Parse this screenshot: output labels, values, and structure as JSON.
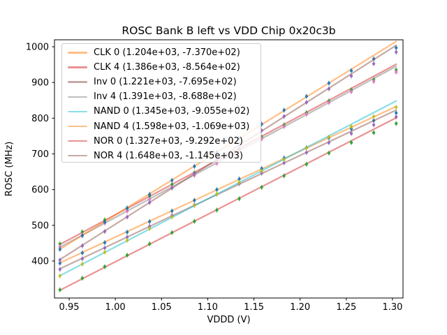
{
  "chart_data": {
    "type": "line",
    "title": "ROSC Bank B left vs VDD Chip 0x20c3b",
    "xlabel": "VDDD (V)",
    "ylabel": "ROSC (MHz)",
    "grid": false,
    "legend_position": "upper left",
    "xlim": [
      0.9341,
      1.3114
    ],
    "ylim": [
      296.4,
      1019.6
    ],
    "x_ticks": [
      0.95,
      1.0,
      1.05,
      1.1,
      1.15,
      1.2,
      1.25,
      1.3
    ],
    "x_tick_labels": [
      "0.95",
      "1.00",
      "1.05",
      "1.10",
      "1.15",
      "1.20",
      "1.25",
      "1.30"
    ],
    "y_ticks": [
      400,
      500,
      600,
      700,
      800,
      900,
      1000
    ],
    "y_tick_labels": [
      "400",
      "500",
      "600",
      "700",
      "800",
      "900",
      "1000"
    ],
    "x_sweep": {
      "start": 0.94,
      "stop": 1.304,
      "points": 16
    },
    "series": [
      {
        "name": "CLK 0",
        "legend_label": "CLK 0 (1.204e+03, -7.370e+02)",
        "slope": 1204,
        "intercept": -737.0,
        "line_color": "#ff7f0e",
        "marker_color": "#1f77b4"
      },
      {
        "name": "CLK 4",
        "legend_label": "CLK 4 (1.386e+03, -8.564e+02)",
        "slope": 1386,
        "intercept": -856.4,
        "line_color": "#d62728",
        "marker_color": "#2ca02c"
      },
      {
        "name": "Inv 0",
        "legend_label": "Inv 0 (1.221e+03, -7.695e+02)",
        "slope": 1221,
        "intercept": -769.5,
        "line_color": "#8c564b",
        "marker_color": "#9467bd"
      },
      {
        "name": "Inv 4",
        "legend_label": "Inv 4 (1.391e+03, -8.688e+02)",
        "slope": 1391,
        "intercept": -868.8,
        "line_color": "#7f7f7f",
        "marker_color": "#e377c2"
      },
      {
        "name": "NAND 0",
        "legend_label": "NAND 0 (1.345e+03, -9.055e+02)",
        "slope": 1345,
        "intercept": -905.5,
        "line_color": "#17becf",
        "marker_color": "#bcbd22"
      },
      {
        "name": "NAND 4",
        "legend_label": "NAND 4 (1.598e+03, -1.069e+03)",
        "slope": 1598,
        "intercept": -1069.0,
        "line_color": "#ff7f0e",
        "marker_color": "#1f77b4"
      },
      {
        "name": "NOR 0",
        "legend_label": "NOR 0 (1.327e+03, -9.292e+02)",
        "slope": 1327,
        "intercept": -929.2,
        "line_color": "#d62728",
        "marker_color": "#2ca02c"
      },
      {
        "name": "NOR 4",
        "legend_label": "NOR 4 (1.648e+03, -1.145e+03)",
        "slope": 1648,
        "intercept": -1145.0,
        "line_color": "#8c564b",
        "marker_color": "#9467bd"
      }
    ],
    "line_alpha": 0.5,
    "frame_color": "#000000",
    "legend_border_color": "#cccccc"
  }
}
